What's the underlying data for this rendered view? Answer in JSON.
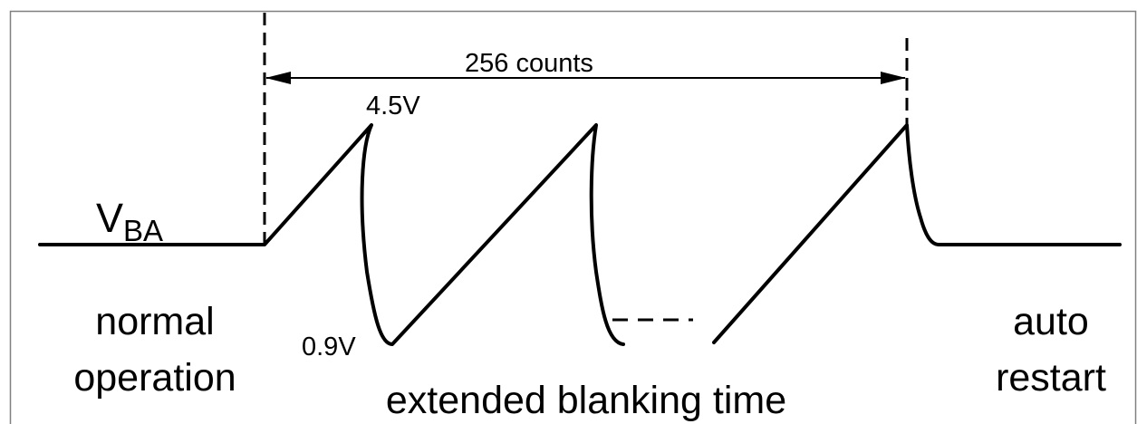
{
  "diagram": {
    "signal_name": "V",
    "signal_subscript": "BA",
    "counts_label": "256 counts",
    "peak_voltage_label": "4.5V",
    "valley_voltage_label": "0.9V",
    "normal_label_line1": "normal",
    "normal_label_line2": "operation",
    "blanking_label": "extended blanking time",
    "restart_label_line1": "auto",
    "restart_label_line2": "restart"
  },
  "colors": {
    "line": "#000000",
    "frame": "#808080",
    "background": "#ffffff"
  }
}
